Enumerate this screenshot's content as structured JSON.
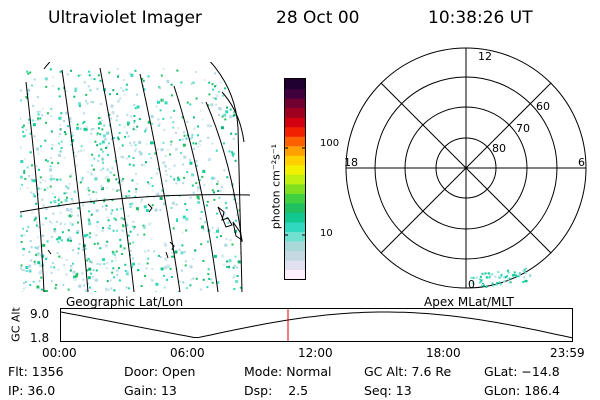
{
  "header": {
    "instrument": "Ultraviolet Imager",
    "date": "28 Oct 00",
    "time": "10:38:26 UT"
  },
  "colorbar": {
    "unit_label": "photon cm⁻²s⁻¹",
    "ticks": [
      "100",
      "10"
    ],
    "colors": [
      "#fff0ff",
      "#e0e0f0",
      "#c4d8e0",
      "#a8d8d8",
      "#70e0d0",
      "#30d8c0",
      "#10c890",
      "#20c060",
      "#40d040",
      "#80e020",
      "#c0f010",
      "#f0f000",
      "#ffd000",
      "#ffa000",
      "#ff6000",
      "#f02000",
      "#d00010",
      "#a00020",
      "#700030",
      "#400040",
      "#200030"
    ]
  },
  "polar": {
    "mlt_labels": [
      "12",
      "18",
      "6",
      "0"
    ],
    "mlat_labels": [
      "60",
      "70",
      "80"
    ]
  },
  "timeline": {
    "left_title": "Geographic Lat/Lon",
    "right_title": "Apex  MLat/MLT",
    "y_axis_label": "GC Alt",
    "y_ticks": [
      "9.0",
      "1.8"
    ],
    "x_ticks": [
      "00:00",
      "06:00",
      "12:00",
      "18:00",
      "23:59"
    ],
    "marker_color": "#e00000"
  },
  "footer": {
    "flt_label": "Flt:",
    "flt_value": "1356",
    "ip_label": "IP:",
    "ip_value": "36.0",
    "door_label": "Door:",
    "door_value": "Open",
    "gain_label": "Gain:",
    "gain_value": "13",
    "mode_label": "Mode:",
    "mode_value": "Normal",
    "dsp_label": "Dsp:",
    "dsp_value": "2.5",
    "gcalt_label": "GC Alt:",
    "gcalt_value": "7.6 Re",
    "seq_label": "Seq:",
    "seq_value": "13",
    "glat_label": "GLat:",
    "glat_value": "−14.8",
    "glon_label": "GLon:",
    "glon_value": "186.4"
  }
}
